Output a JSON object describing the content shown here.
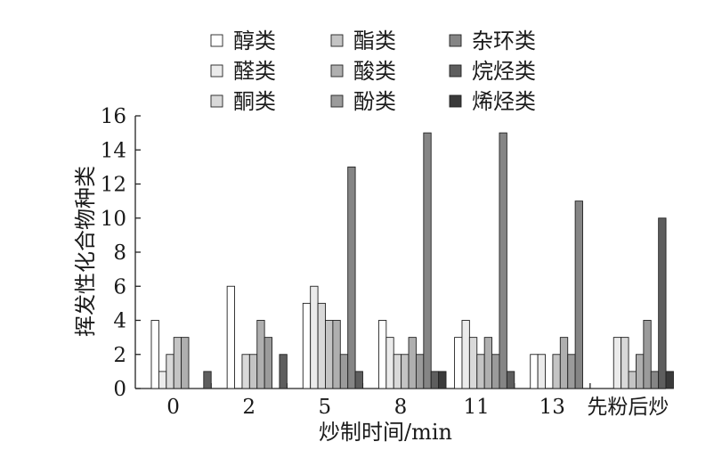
{
  "chart_data": {
    "type": "bar",
    "xlabel": "炒制时间/min",
    "ylabel": "挥发性化合物种类",
    "ylim": [
      0,
      16
    ],
    "yticks": [
      0,
      2,
      4,
      6,
      8,
      10,
      12,
      14,
      16
    ],
    "categories": [
      "0",
      "2",
      "5",
      "8",
      "11",
      "13",
      "先粉后炒"
    ],
    "legend_position": "top",
    "series": [
      {
        "name": "醇类",
        "color": "#ffffff",
        "values": [
          4,
          6,
          5,
          4,
          3,
          2,
          0
        ]
      },
      {
        "name": "醛类",
        "color": "#ebebeb",
        "values": [
          1,
          0,
          6,
          3,
          4,
          2,
          3
        ]
      },
      {
        "name": "酮类",
        "color": "#d9d9d9",
        "values": [
          2,
          2,
          5,
          2,
          3,
          0,
          3
        ]
      },
      {
        "name": "酯类",
        "color": "#c4c4c4",
        "values": [
          3,
          2,
          4,
          2,
          2,
          2,
          1
        ]
      },
      {
        "name": "酸类",
        "color": "#afafaf",
        "values": [
          3,
          4,
          4,
          3,
          3,
          3,
          2
        ]
      },
      {
        "name": "酚类",
        "color": "#9b9b9b",
        "values": [
          0,
          3,
          2,
          2,
          2,
          2,
          4
        ]
      },
      {
        "name": "杂环类",
        "color": "#858585",
        "values": [
          0,
          0,
          13,
          15,
          15,
          11,
          1
        ]
      },
      {
        "name": "烷烃类",
        "color": "#5e5e5e",
        "values": [
          1,
          2,
          1,
          1,
          1,
          0,
          10
        ]
      },
      {
        "name": "烯烃类",
        "color": "#3a3a3a",
        "values": [
          0,
          0,
          0,
          1,
          0,
          0,
          1
        ]
      }
    ]
  }
}
